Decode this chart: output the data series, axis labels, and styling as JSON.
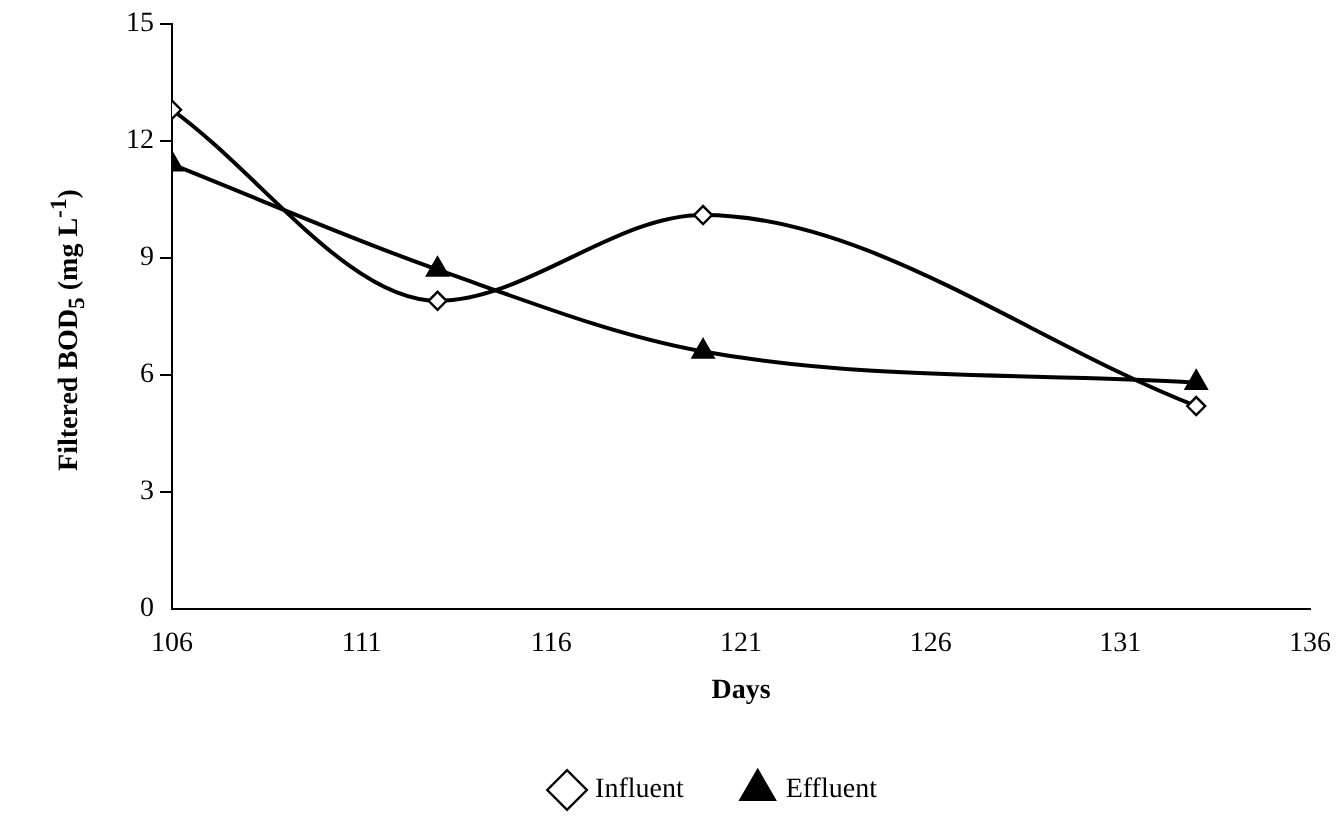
{
  "chart_data": {
    "type": "line",
    "xlabel": "Days",
    "ylabel": "Filtered BOD$_{5}$ (mg L$^{-1}$)",
    "xlim": [
      106,
      136
    ],
    "xticks": [
      106,
      111,
      116,
      121,
      126,
      131,
      136
    ],
    "ylim": [
      0,
      15
    ],
    "yticks": [
      0,
      3,
      6,
      9,
      12,
      15
    ],
    "grid": false,
    "legend": "bottom",
    "series": [
      {
        "name": "Influent",
        "color": "#000000",
        "marker": "diamond",
        "x": [
          106,
          113,
          120,
          133
        ],
        "values": [
          12.8,
          7.9,
          10.1,
          5.2
        ]
      },
      {
        "name": "Effluent",
        "color": "#000000",
        "marker": "triangle",
        "x": [
          106,
          113,
          120,
          133
        ],
        "values": [
          11.4,
          8.7,
          6.6,
          5.8
        ]
      }
    ]
  }
}
